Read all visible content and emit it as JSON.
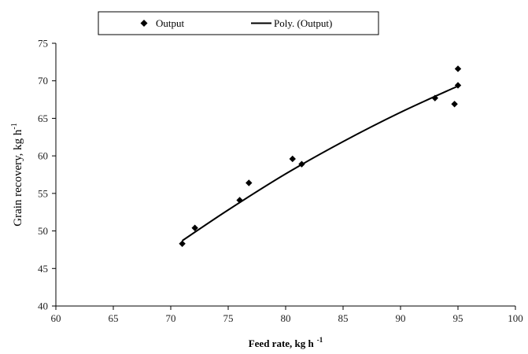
{
  "chart_data": {
    "type": "scatter",
    "xlabel": "Feed rate, kg h",
    "xlabel_sup": "-1",
    "ylabel": "Grain recovery, kg h",
    "ylabel_sup": "-1",
    "xlim": [
      60,
      100
    ],
    "ylim": [
      40,
      75
    ],
    "x_ticks": [
      60,
      65,
      70,
      75,
      80,
      85,
      90,
      95,
      100
    ],
    "y_ticks": [
      40,
      45,
      50,
      55,
      60,
      65,
      70,
      75
    ],
    "x_tick_labels": [
      "60",
      "65",
      "70",
      "75",
      "80",
      "85",
      "90",
      "95",
      "100"
    ],
    "y_tick_labels": [
      "40",
      "45",
      "50",
      "55",
      "60",
      "65",
      "70",
      "75"
    ],
    "grid": false,
    "legend_position": "top",
    "series": [
      {
        "name": "Output",
        "kind": "scatter",
        "marker": "diamond",
        "color": "#000000",
        "points": [
          {
            "x": 71.0,
            "y": 48.3
          },
          {
            "x": 72.1,
            "y": 50.4
          },
          {
            "x": 76.0,
            "y": 54.1
          },
          {
            "x": 76.8,
            "y": 56.4
          },
          {
            "x": 80.6,
            "y": 59.6
          },
          {
            "x": 81.4,
            "y": 58.9
          },
          {
            "x": 93.0,
            "y": 67.7
          },
          {
            "x": 94.7,
            "y": 66.9
          },
          {
            "x": 95.0,
            "y": 71.6
          },
          {
            "x": 95.0,
            "y": 69.4
          }
        ]
      },
      {
        "name": "Poly. (Output)",
        "kind": "line",
        "color": "#000000",
        "points": [
          {
            "x": 71.0,
            "y": 48.7
          },
          {
            "x": 75.0,
            "y": 52.8
          },
          {
            "x": 80.0,
            "y": 57.6
          },
          {
            "x": 85.0,
            "y": 61.9
          },
          {
            "x": 90.0,
            "y": 65.8
          },
          {
            "x": 95.0,
            "y": 69.3
          }
        ]
      }
    ]
  }
}
